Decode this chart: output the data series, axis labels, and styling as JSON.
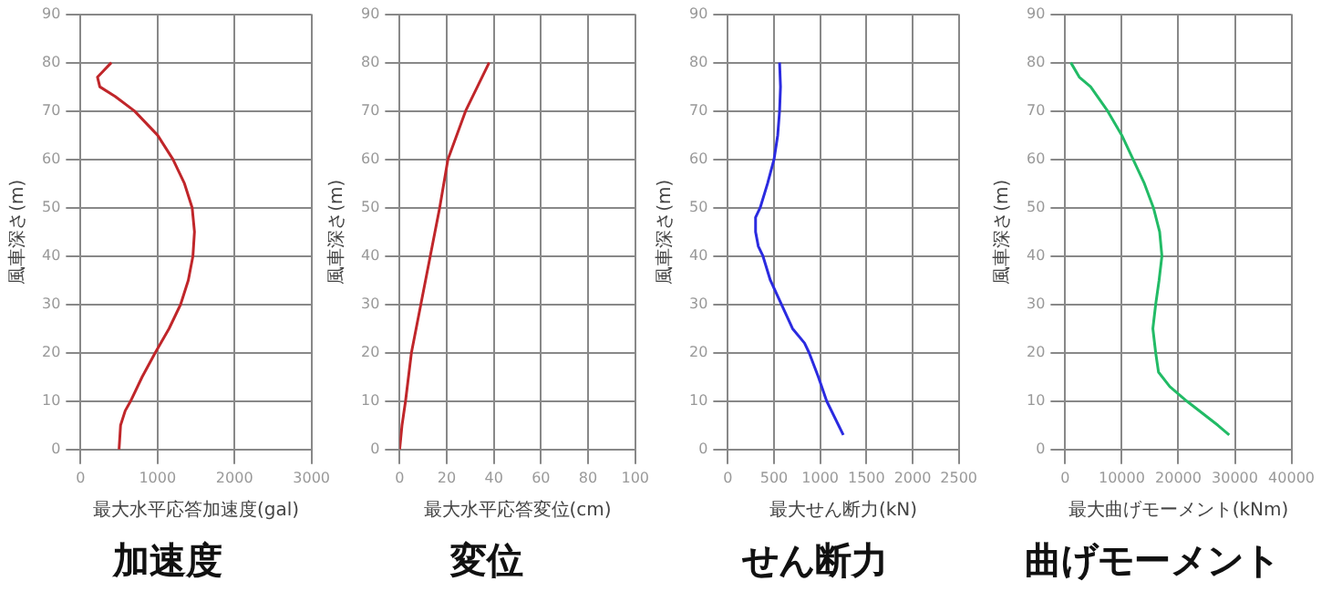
{
  "chart_data": [
    {
      "type": "line",
      "title": "加速度",
      "xlabel": "最大水平応答加速度(gal)",
      "ylabel": "風車深さ(m)",
      "xlim": [
        0,
        3000
      ],
      "xticks": [
        0,
        1000,
        2000,
        3000
      ],
      "ylim": [
        0,
        90
      ],
      "yticks": [
        0,
        10,
        20,
        30,
        40,
        50,
        60,
        70,
        80,
        90
      ],
      "grid": true,
      "series": [
        {
          "color": "#c0262a",
          "x": [
            500,
            520,
            580,
            650,
            800,
            970,
            1150,
            1300,
            1400,
            1460,
            1480,
            1450,
            1350,
            1200,
            1000,
            700,
            450,
            250,
            220,
            280,
            400
          ],
          "values": [
            0,
            5,
            8,
            10,
            15,
            20,
            25,
            30,
            35,
            40,
            45,
            50,
            55,
            60,
            65,
            70,
            73,
            75,
            77,
            78,
            80
          ]
        }
      ]
    },
    {
      "type": "line",
      "title": "変位",
      "xlabel": "最大水平応答変位(cm)",
      "ylabel": "風車深さ(m)",
      "xlim": [
        0,
        100
      ],
      "xticks": [
        0,
        20,
        40,
        60,
        80,
        100
      ],
      "ylim": [
        0,
        90
      ],
      "yticks": [
        0,
        10,
        20,
        30,
        40,
        50,
        60,
        70,
        80,
        90
      ],
      "grid": true,
      "series": [
        {
          "color": "#c0262a",
          "x": [
            0,
            1,
            2.5,
            5,
            9,
            13,
            17,
            20.5,
            28,
            38
          ],
          "values": [
            0,
            5,
            10,
            20,
            30,
            40,
            50,
            60,
            70,
            80
          ]
        }
      ]
    },
    {
      "type": "line",
      "title": "せん断力",
      "xlabel": "最大せん断力(kN)",
      "ylabel": "風車深さ(m)",
      "xlim": [
        0,
        2500
      ],
      "xticks": [
        0,
        500,
        1000,
        1500,
        2000,
        2500
      ],
      "ylim": [
        0,
        90
      ],
      "yticks": [
        0,
        10,
        20,
        30,
        40,
        50,
        60,
        70,
        80,
        90
      ],
      "grid": true,
      "series": [
        {
          "color": "#2b2be0",
          "x": [
            1250,
            1070,
            980,
            880,
            830,
            700,
            580,
            460,
            380,
            330,
            300,
            300,
            350,
            430,
            500,
            540,
            560,
            570,
            560
          ],
          "values": [
            3,
            10,
            15,
            20,
            22,
            25,
            30,
            35,
            40,
            42,
            45,
            48,
            50,
            55,
            60,
            65,
            70,
            75,
            80
          ]
        }
      ]
    },
    {
      "type": "line",
      "title": "曲げモーメント",
      "xlabel": "最大曲げモーメント(kNm)",
      "ylabel": "風車深さ(m)",
      "xlim": [
        0,
        40000
      ],
      "xticks": [
        0,
        10000,
        20000,
        30000,
        40000
      ],
      "ylim": [
        0,
        90
      ],
      "yticks": [
        0,
        10,
        20,
        30,
        40,
        50,
        60,
        70,
        80,
        90
      ],
      "grid": true,
      "series": [
        {
          "color": "#22bb66",
          "x": [
            29000,
            27000,
            21500,
            18500,
            16500,
            16000,
            15500,
            16000,
            16600,
            17100,
            16700,
            15600,
            14000,
            12000,
            10000,
            7500,
            4500,
            2500,
            1000
          ],
          "values": [
            3,
            5,
            10,
            13,
            16,
            20,
            25,
            30,
            35,
            40,
            45,
            50,
            55,
            60,
            65,
            70,
            75,
            77,
            80
          ]
        }
      ]
    }
  ]
}
